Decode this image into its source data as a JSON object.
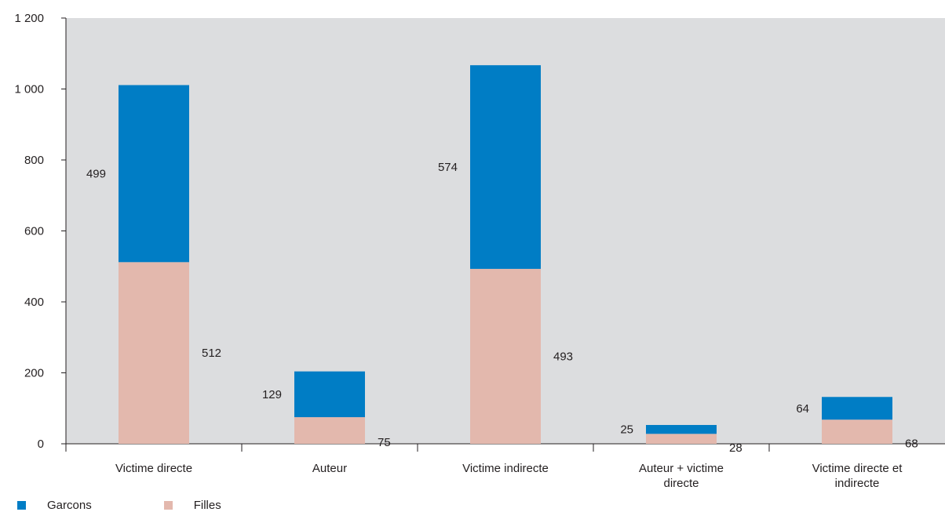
{
  "chart_data": {
    "type": "bar",
    "stacked": true,
    "title": "",
    "xlabel": "",
    "ylabel": "",
    "ylim": [
      0,
      1200
    ],
    "yticks": [
      0,
      200,
      400,
      600,
      800,
      1000,
      1200
    ],
    "ytick_labels": [
      "0",
      "200",
      "400",
      "600",
      "800",
      "1 000",
      "1 200"
    ],
    "grid": false,
    "legend_position": "bottom-left",
    "categories": [
      [
        "Victime directe"
      ],
      [
        "Auteur"
      ],
      [
        "Victime indirecte"
      ],
      [
        "Auteur + victime",
        "directe"
      ],
      [
        "Victime directe et",
        "indirecte"
      ]
    ],
    "series": [
      {
        "name": "Filles",
        "color": "#e3b8ad",
        "values": [
          512,
          75,
          493,
          28,
          68
        ]
      },
      {
        "name": "Garcons",
        "color": "#007dc5",
        "values": [
          499,
          129,
          574,
          25,
          64
        ]
      }
    ],
    "plot_background": "#dcdddf"
  },
  "legend": [
    {
      "label": "Garcons",
      "color": "#007dc5"
    },
    {
      "label": "Filles",
      "color": "#e3b8ad"
    }
  ]
}
